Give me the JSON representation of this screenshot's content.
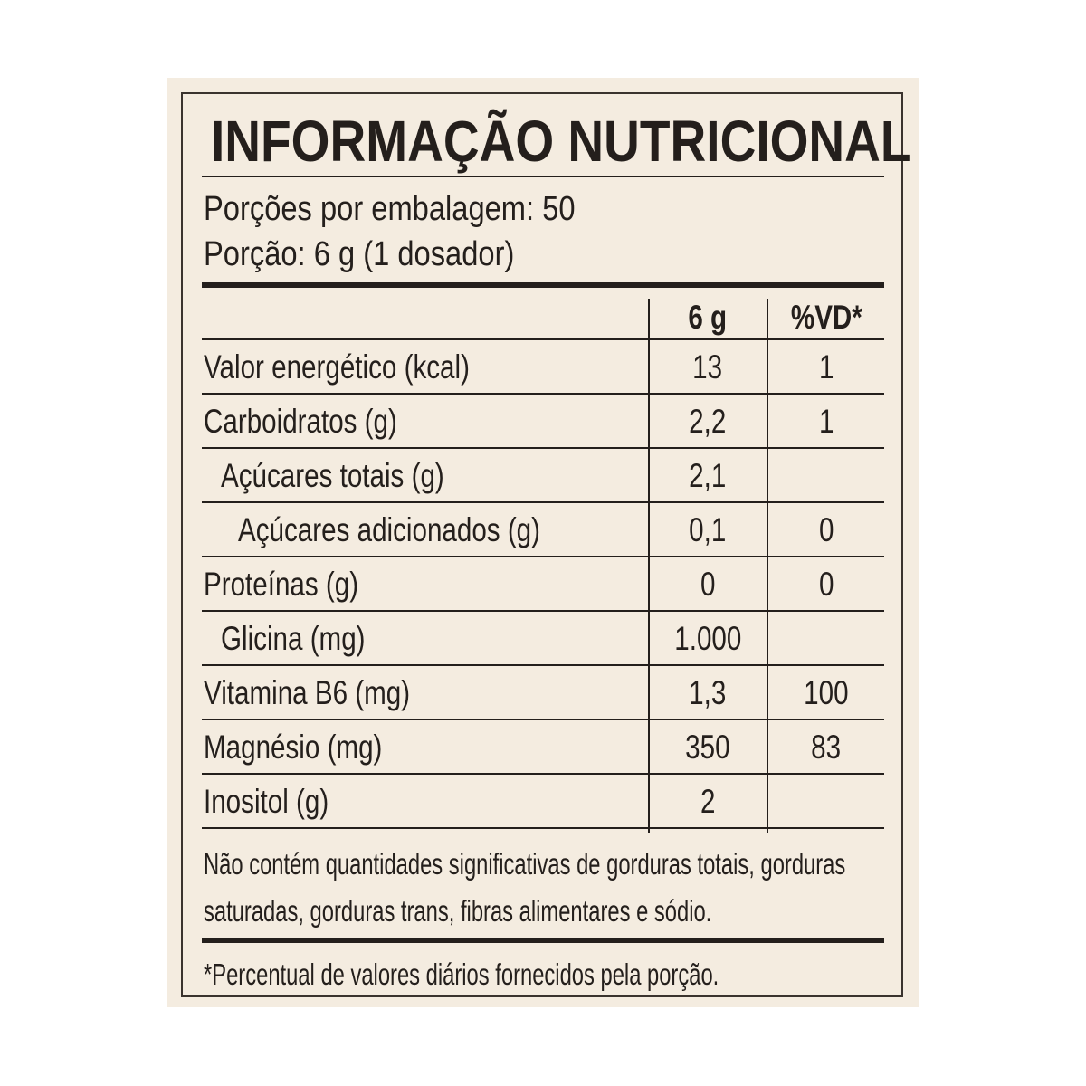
{
  "title": "INFORMAÇÃO NUTRICIONAL",
  "servings_per_package": "Porções por embalagem: 50",
  "serving_size": "Porção: 6 g (1 dosador)",
  "columns": {
    "amount": "6 g",
    "dv": "%VD*"
  },
  "rows": [
    {
      "label": "Valor energético (kcal)",
      "amount": "13",
      "dv": "1",
      "indent": 0
    },
    {
      "label": "Carboidratos (g)",
      "amount": "2,2",
      "dv": "1",
      "indent": 0
    },
    {
      "label": "Açúcares totais (g)",
      "amount": "2,1",
      "dv": "",
      "indent": 1
    },
    {
      "label": "Açúcares adicionados (g)",
      "amount": "0,1",
      "dv": "0",
      "indent": 2
    },
    {
      "label": "Proteínas (g)",
      "amount": "0",
      "dv": "0",
      "indent": 0
    },
    {
      "label": "Glicina (mg)",
      "amount": "1.000",
      "dv": "",
      "indent": 1
    },
    {
      "label": "Vitamina B6 (mg)",
      "amount": "1,3",
      "dv": "100",
      "indent": 0
    },
    {
      "label": "Magnésio (mg)",
      "amount": "350",
      "dv": "83",
      "indent": 0
    },
    {
      "label": "Inositol (g)",
      "amount": "2",
      "dv": "",
      "indent": 0
    }
  ],
  "not_significant_line1": "Não contém quantidades significativas de gorduras totais, gorduras",
  "not_significant_line2": "saturadas, gorduras trans, fibras alimentares e sódio.",
  "footnote": "*Percentual de valores diários fornecidos pela porção.",
  "colors": {
    "background": "#f4ece0",
    "text": "#241f1c"
  }
}
